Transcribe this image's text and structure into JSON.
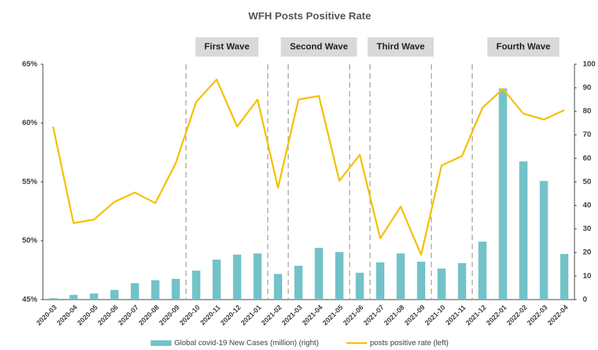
{
  "chart_data": {
    "type": "combo",
    "title": "WFH Posts Positive Rate",
    "categories": [
      "2020-03",
      "2020-04",
      "2020-05",
      "2020-06",
      "2020-07",
      "2020-08",
      "2020-09",
      "2020-10",
      "2020-11",
      "2020-12",
      "2021-01",
      "2021-02",
      "2021-03",
      "2021-04",
      "2021-05",
      "2021-06",
      "2021-07",
      "2021-08",
      "2021-09",
      "2021-10",
      "2021-11",
      "2021-12",
      "2022-01",
      "2022-02",
      "2022-03",
      "2022-04"
    ],
    "series": [
      {
        "name": "Global covid-19 New Cases (million) (right)",
        "type": "bar",
        "axis": "y2",
        "color": "#73c2c9",
        "values": [
          0.6,
          2,
          2.6,
          4.1,
          7,
          8.2,
          8.8,
          12.3,
          17,
          19.1,
          19.6,
          10.9,
          14.4,
          22,
          20.2,
          11.4,
          15.8,
          19.6,
          16.1,
          13.2,
          15.5,
          24.6,
          89.7,
          58.7,
          50.4,
          19.4
        ]
      },
      {
        "name": "posts positive rate (left)",
        "type": "line",
        "axis": "y",
        "color": "#f5c000",
        "values": [
          59.7,
          51.5,
          51.8,
          53.3,
          54.1,
          53.2,
          56.6,
          61.8,
          63.7,
          59.7,
          62.0,
          54.5,
          62.0,
          62.3,
          55.1,
          57.3,
          50.2,
          52.9,
          48.8,
          56.4,
          57.2,
          61.3,
          62.9,
          60.8,
          60.3,
          61.1
        ]
      }
    ],
    "ylim": [
      45,
      65
    ],
    "yticks": [
      {
        "value": 45,
        "label": "45%"
      },
      {
        "value": 50,
        "label": "50%"
      },
      {
        "value": 55,
        "label": "55%"
      },
      {
        "value": 60,
        "label": "60%"
      },
      {
        "value": 65,
        "label": "65%"
      }
    ],
    "y2lim": [
      0,
      100
    ],
    "y2ticks": [
      0,
      10,
      20,
      30,
      40,
      50,
      60,
      70,
      80,
      90,
      100
    ],
    "waves": [
      {
        "label": "First Wave",
        "start": "2020-10",
        "end": "2021-01"
      },
      {
        "label": "Second Wave",
        "start": "2021-03",
        "end": "2021-05"
      },
      {
        "label": "Third Wave",
        "start": "2021-07",
        "end": "2021-09"
      },
      {
        "label": "Fourth Wave",
        "start": "2021-12",
        "end": "2022-04"
      }
    ],
    "legend": "bottom"
  }
}
